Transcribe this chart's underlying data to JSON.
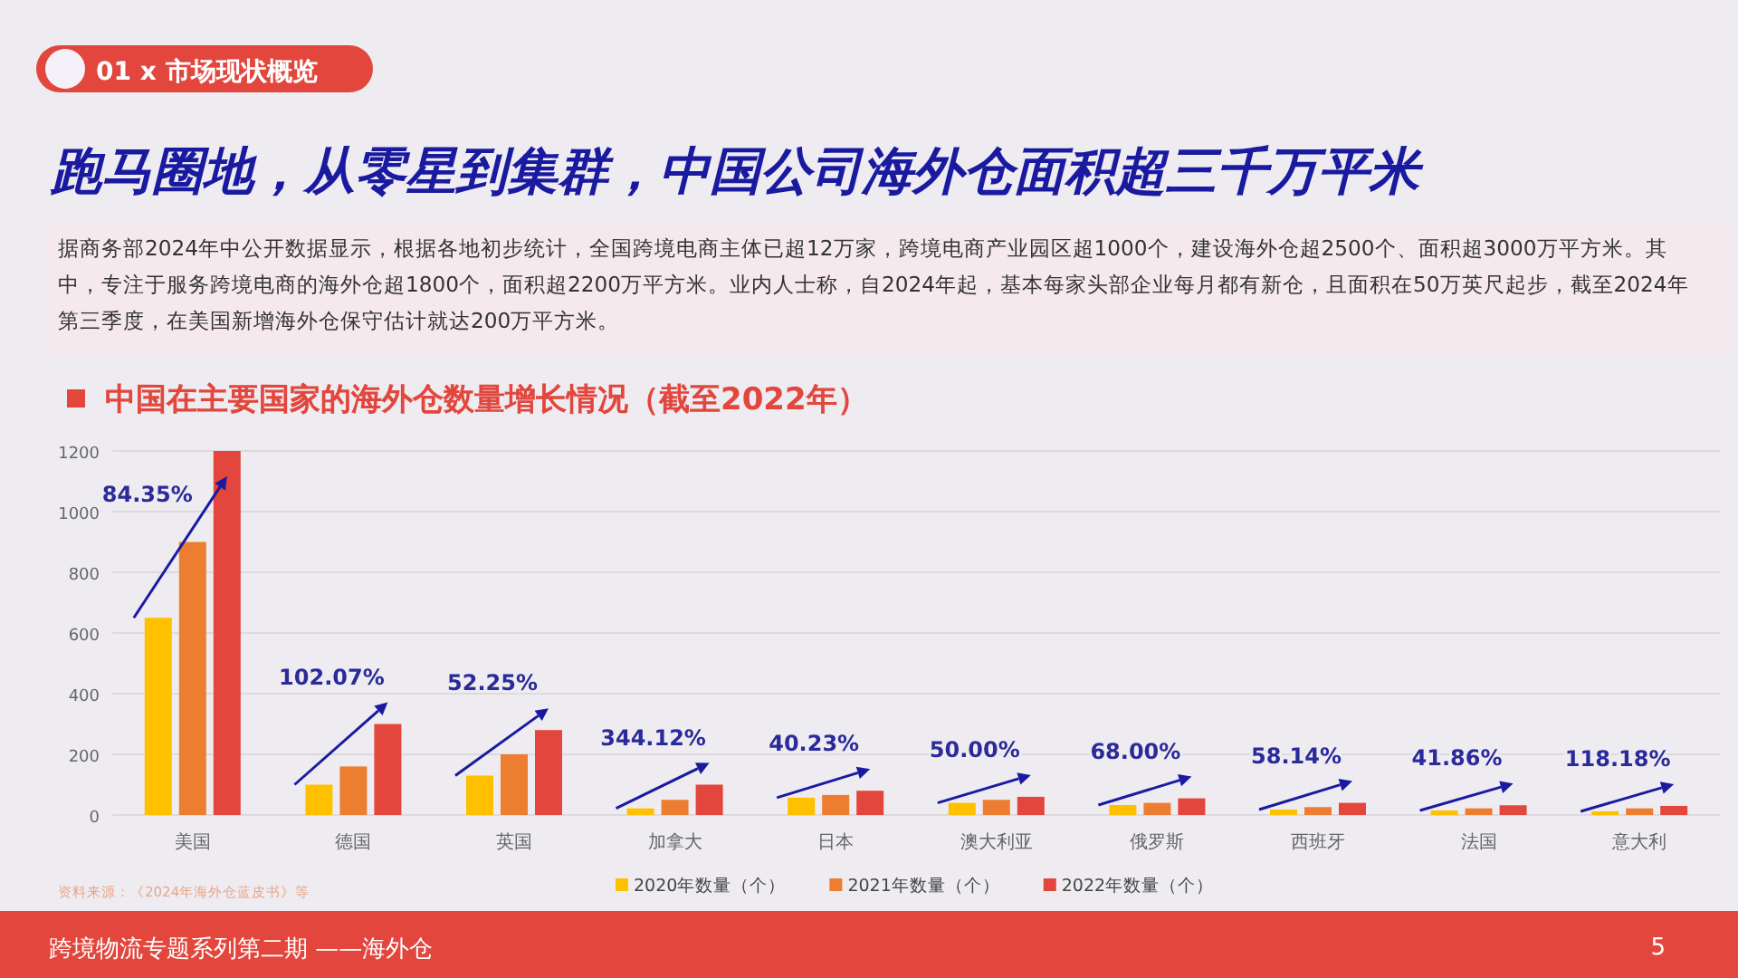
{
  "chart_data": {
    "type": "bar",
    "title": "跑马圈地，从零星到集群，中国公司海外仓面积超三千万平米",
    "subtitle": "中国在主要国家的海外仓数量增长情况（截至2022年）",
    "categories": [
      "美国",
      "德国",
      "英国",
      "加拿大",
      "日本",
      "澳大利亚",
      "俄罗斯",
      "西班牙",
      "法国",
      "意大利"
    ],
    "series": [
      {
        "name": "2020年数量（个）",
        "color": "#ffc000",
        "values": [
          650,
          100,
          130,
          22,
          57,
          40,
          33,
          18,
          15,
          12
        ]
      },
      {
        "name": "2021年数量（个）",
        "color": "#ed7d31",
        "values": [
          900,
          160,
          200,
          50,
          66,
          50,
          40,
          26,
          22,
          22
        ]
      },
      {
        "name": "2022年数量（个）",
        "color": "#e2463c",
        "values": [
          1200,
          300,
          280,
          100,
          80,
          60,
          55,
          40,
          32,
          30
        ]
      }
    ],
    "ylim": [
      0,
      1200
    ],
    "yticks": [
      0,
      200,
      400,
      600,
      800,
      1000,
      1200
    ],
    "grid": "y",
    "legend": "bottom",
    "annotations": [
      "84.35%",
      "102.07%",
      "52.25%",
      "344.12%",
      "40.23%",
      "50.00%",
      "68.00%",
      "58.14%",
      "41.86%",
      "118.18%",
      "01 x 市场现状概览",
      "据商务部2024年中公开数据显示，根据各地初步统计，全国跨境电商主体已超12万家，跨境电商产业园区超1000个，建设海外仓超2500个、面积超3000万平方米。其中，专注于服务跨境电商的海外仓超1800个，面积超2200万平方米。业内人士称，自2024年起，基本每家头部企业每月都有新仓，且面积在50万英尺起步，截至2024年第三季度，在美国新增海外仓保守估计就达200万平方米。",
      "资料来源：《2024年海外仓蓝皮书》等",
      "跨境物流专题系列第二期 ——海外仓",
      "5"
    ]
  }
}
